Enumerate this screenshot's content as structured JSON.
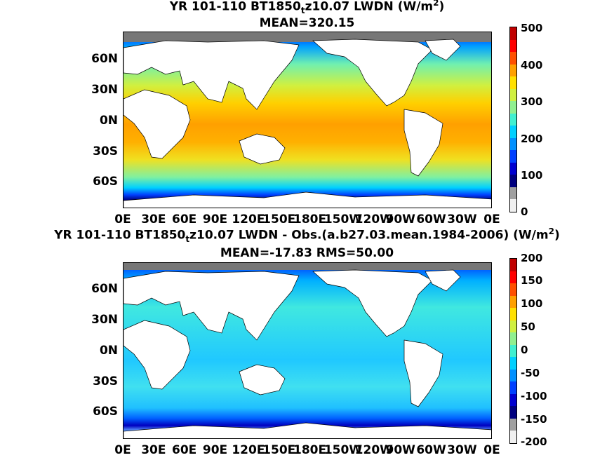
{
  "panel1": {
    "title_pre": "YR 101-110 BT1850",
    "title_sub": "t",
    "title_post": "z10.07 LWDN (W/m",
    "title_sup": "2",
    "title_end": ")",
    "mean_line": "MEAN=320.15",
    "colorbar_ticks": [
      "500",
      "400",
      "300",
      "200",
      "100",
      "0"
    ]
  },
  "panel2": {
    "title_pre": "YR 101-110 BT1850",
    "title_sub": "t",
    "title_post": "z10.07 LWDN - Obs.(a.b27.03.mean.1984-2006) (W/m",
    "title_sup": "2",
    "title_end": ")",
    "mean_line": "MEAN=-17.83 RMS=50.00",
    "colorbar_ticks": [
      "200",
      "150",
      "100",
      "50",
      "0",
      "-50",
      "-100",
      "-150",
      "-200"
    ]
  },
  "lat_labels": [
    "60N",
    "30N",
    "0N",
    "30S",
    "60S"
  ],
  "lon_labels": [
    "0E",
    "30E",
    "60E",
    "90E",
    "120E",
    "150E",
    "180E",
    "150W",
    "120W",
    "90W",
    "60W",
    "30W",
    "0E"
  ],
  "colors": {
    "land": "#ffffff",
    "missing": "#777777",
    "colormap": [
      "#f0f0f0",
      "#a0a0a0",
      "#00007f",
      "#0000d0",
      "#0040ff",
      "#0090ff",
      "#00d0ff",
      "#40f0d0",
      "#90f090",
      "#d0f040",
      "#ffe000",
      "#ffa000",
      "#ff5000",
      "#ff0000",
      "#c00000"
    ]
  }
}
